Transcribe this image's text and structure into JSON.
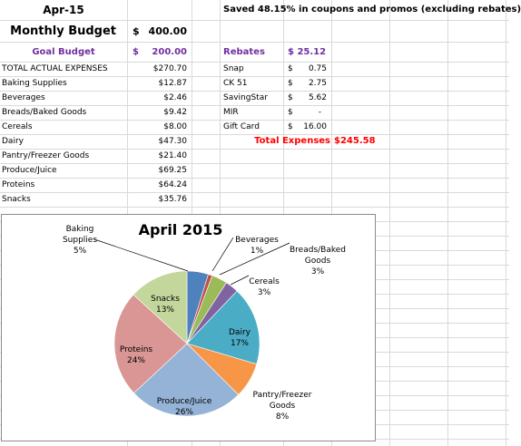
{
  "header": {
    "month": "Apr-15",
    "monthly_budget_label": "Monthly Budget",
    "monthly_budget_currency": "$",
    "monthly_budget_value": "400.00",
    "goal_budget_label": "Goal Budget",
    "goal_budget_currency": "$",
    "goal_budget_value": "200.00",
    "savings_note": "Saved 48.15% in coupons and promos (excluding rebates)"
  },
  "expenses": [
    {
      "label": "TOTAL ACTUAL EXPENSES",
      "value": "$270.70"
    },
    {
      "label": "Baking Supplies",
      "value": "$12.87"
    },
    {
      "label": "Beverages",
      "value": "$2.46"
    },
    {
      "label": "Breads/Baked Goods",
      "value": "$9.42"
    },
    {
      "label": "Cereals",
      "value": "$8.00"
    },
    {
      "label": "Dairy",
      "value": "$47.30"
    },
    {
      "label": "Pantry/Freezer Goods",
      "value": "$21.40"
    },
    {
      "label": "Produce/Juice",
      "value": "$69.25"
    },
    {
      "label": "Proteins",
      "value": "$64.24"
    },
    {
      "label": "Snacks",
      "value": "$35.76"
    }
  ],
  "rebates": {
    "title": "Rebates",
    "total": "$ 25.12",
    "items": [
      {
        "label": "Snap",
        "currency": "$",
        "value": "0.75"
      },
      {
        "label": "CK 51",
        "currency": "$",
        "value": "2.75"
      },
      {
        "label": "SavingStar",
        "currency": "$",
        "value": "5.62"
      },
      {
        "label": "MIR",
        "currency": "$",
        "value": "-"
      },
      {
        "label": "Gift Card",
        "currency": "$",
        "value": "16.00"
      }
    ],
    "total_expenses_label": "Total Expenses",
    "total_expenses_value": "$245.58"
  },
  "colors": {
    "purple": "#7030a0",
    "red": "#ff0000",
    "grid": "#d9d9d9"
  },
  "chart_data": {
    "type": "pie",
    "title": "April 2015",
    "slices": [
      {
        "name": "Baking Supplies",
        "value": 12.87,
        "label": "5%",
        "color": "#4f81bd"
      },
      {
        "name": "Beverages",
        "value": 2.46,
        "label": "1%",
        "color": "#c0504d"
      },
      {
        "name": "Breads/Baked Goods",
        "value": 9.42,
        "label": "3%",
        "color": "#9bbb59"
      },
      {
        "name": "Cereals",
        "value": 8.0,
        "label": "3%",
        "color": "#8064a2"
      },
      {
        "name": "Dairy",
        "value": 47.3,
        "label": "17%",
        "color": "#4bacc6"
      },
      {
        "name": "Pantry/Freezer Goods",
        "value": 21.4,
        "label": "8%",
        "color": "#f79646"
      },
      {
        "name": "Produce/Juice",
        "value": 69.25,
        "label": "26%",
        "color": "#95b3d7"
      },
      {
        "name": "Proteins",
        "value": 64.24,
        "label": "24%",
        "color": "#d99694"
      },
      {
        "name": "Snacks",
        "value": 35.76,
        "label": "13%",
        "color": "#c3d69b"
      }
    ]
  }
}
